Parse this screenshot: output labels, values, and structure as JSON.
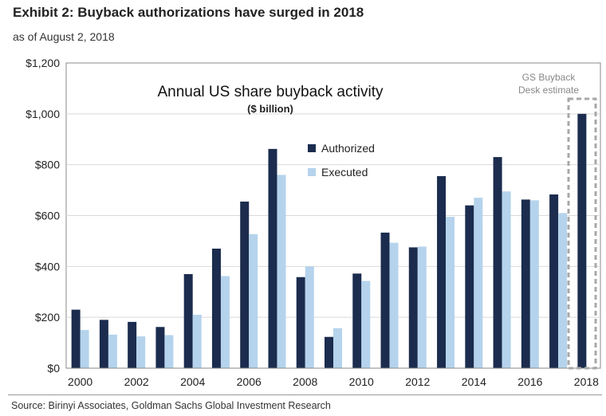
{
  "header": {
    "title": "Exhibit 2: Buyback authorizations have surged in 2018",
    "subtitle": "as of August 2, 2018"
  },
  "footer": {
    "source": "Source: Birinyi Associates, Goldman Sachs Global Investment Research"
  },
  "chart_data": {
    "type": "bar",
    "title": "Annual US share buyback activity",
    "subtitle": "($ billion)",
    "categories": [
      "2000",
      "2001",
      "2002",
      "2003",
      "2004",
      "2005",
      "2006",
      "2007",
      "2008",
      "2009",
      "2010",
      "2011",
      "2012",
      "2013",
      "2014",
      "2015",
      "2016",
      "2017",
      "2018"
    ],
    "x_tick_labels": [
      "2000",
      "2002",
      "2004",
      "2006",
      "2008",
      "2010",
      "2012",
      "2014",
      "2016",
      "2018"
    ],
    "series": [
      {
        "name": "Authorized",
        "color": "#1b2c4e",
        "values": [
          230,
          190,
          182,
          162,
          370,
          470,
          655,
          862,
          358,
          123,
          372,
          533,
          475,
          755,
          640,
          830,
          663,
          683,
          1000
        ]
      },
      {
        "name": "Executed",
        "color": "#b5d3ec",
        "values": [
          150,
          132,
          125,
          130,
          210,
          362,
          527,
          760,
          400,
          157,
          343,
          493,
          478,
          595,
          670,
          695,
          660,
          610,
          null
        ]
      }
    ],
    "y_ticks": [
      "$0",
      "$200",
      "$400",
      "$600",
      "$800",
      "$1,000",
      "$1,200"
    ],
    "ylim": [
      0,
      1200
    ],
    "legend_position": "center-top",
    "annotation": {
      "line1": "GS Buyback",
      "line2": "Desk estimate",
      "category": "2018"
    }
  }
}
